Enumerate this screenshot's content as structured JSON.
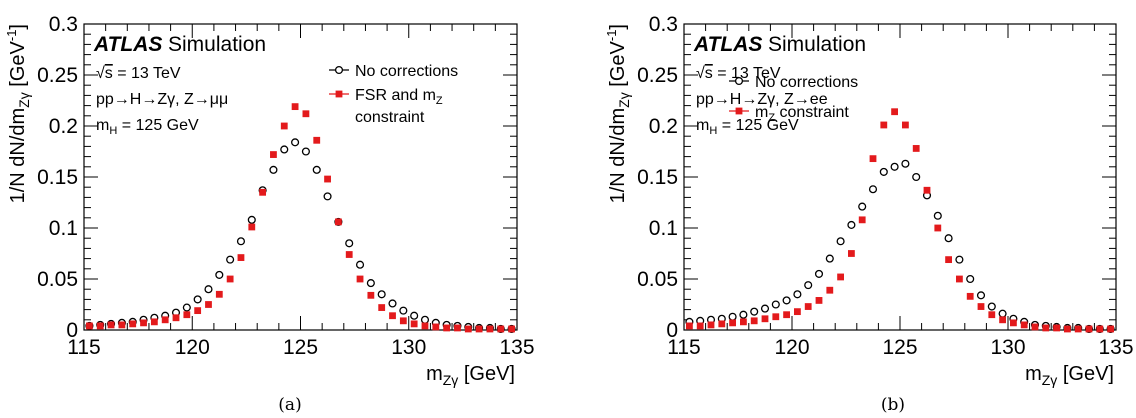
{
  "chart_data": [
    {
      "type": "scatter",
      "panel": "(a)",
      "xlabel_main": "m",
      "xlabel_sub": "Zγ",
      "xlabel_unit": " [GeV]",
      "ylabel": "1/N dN/dm",
      "ylabel_sub": "Zγ",
      "ylabel_unit_a": " [GeV",
      "ylabel_unit_sup": "-1",
      "ylabel_unit_b": "]",
      "xlim": [
        115,
        135
      ],
      "ylim": [
        0,
        0.3
      ],
      "xticks": [
        "115",
        "120",
        "125",
        "130",
        "135"
      ],
      "yticks": [
        "0",
        "0.05",
        "0.1",
        "0.15",
        "0.2",
        "0.25",
        "0.3"
      ],
      "atlas_label": "ATLAS",
      "atlas_suffix": "Simulation",
      "annotations": [
        "√s = 13 TeV",
        "pp→H→Zγ, Z→μμ",
        "m_H = 125 GeV"
      ],
      "legend": [
        "No corrections",
        "FSR and m_Z constraint"
      ],
      "series": [
        {
          "name": "No corrections",
          "marker": "open-circle",
          "color": "#000000",
          "x": [
            115.25,
            115.75,
            116.25,
            116.75,
            117.25,
            117.75,
            118.25,
            118.75,
            119.25,
            119.75,
            120.25,
            120.75,
            121.25,
            121.75,
            122.25,
            122.75,
            123.25,
            123.75,
            124.25,
            124.75,
            125.25,
            125.75,
            126.25,
            126.75,
            127.25,
            127.75,
            128.25,
            128.75,
            129.25,
            129.75,
            130.25,
            130.75,
            131.25,
            131.75,
            132.25,
            132.75,
            133.25,
            133.75,
            134.25,
            134.75
          ],
          "y": [
            0.004,
            0.005,
            0.006,
            0.007,
            0.008,
            0.01,
            0.012,
            0.014,
            0.017,
            0.022,
            0.03,
            0.04,
            0.054,
            0.069,
            0.087,
            0.108,
            0.137,
            0.157,
            0.177,
            0.184,
            0.175,
            0.157,
            0.131,
            0.106,
            0.085,
            0.064,
            0.046,
            0.035,
            0.026,
            0.019,
            0.014,
            0.01,
            0.007,
            0.005,
            0.004,
            0.003,
            0.002,
            0.002,
            0.001,
            0.001
          ]
        },
        {
          "name": "FSR and m_Z constraint",
          "marker": "filled-square",
          "color": "#e31a1c",
          "x": [
            115.25,
            115.75,
            116.25,
            116.75,
            117.25,
            117.75,
            118.25,
            118.75,
            119.25,
            119.75,
            120.25,
            120.75,
            121.25,
            121.75,
            122.25,
            122.75,
            123.25,
            123.75,
            124.25,
            124.75,
            125.25,
            125.75,
            126.25,
            126.75,
            127.25,
            127.75,
            128.25,
            128.75,
            129.25,
            129.75,
            130.25,
            130.75,
            131.25,
            131.75,
            132.25,
            132.75,
            133.25,
            133.75,
            134.25,
            134.75
          ],
          "y": [
            0.004,
            0.004,
            0.005,
            0.005,
            0.006,
            0.007,
            0.008,
            0.01,
            0.012,
            0.015,
            0.019,
            0.025,
            0.035,
            0.05,
            0.071,
            0.101,
            0.135,
            0.172,
            0.2,
            0.219,
            0.212,
            0.186,
            0.148,
            0.106,
            0.074,
            0.05,
            0.034,
            0.022,
            0.014,
            0.009,
            0.006,
            0.004,
            0.003,
            0.002,
            0.002,
            0.001,
            0.001,
            0.001,
            0.001,
            0.001
          ]
        }
      ]
    },
    {
      "type": "scatter",
      "panel": "(b)",
      "xlabel_main": "m",
      "xlabel_sub": "Zγ",
      "xlabel_unit": " [GeV]",
      "ylabel": "1/N dN/dm",
      "ylabel_sub": "Zγ",
      "ylabel_unit_a": " [GeV",
      "ylabel_unit_sup": "-1",
      "ylabel_unit_b": "]",
      "xlim": [
        115,
        135
      ],
      "ylim": [
        0,
        0.3
      ],
      "xticks": [
        "115",
        "120",
        "125",
        "130",
        "135"
      ],
      "yticks": [
        "0",
        "0.05",
        "0.1",
        "0.15",
        "0.2",
        "0.25",
        "0.3"
      ],
      "atlas_label": "ATLAS",
      "atlas_suffix": "Simulation",
      "annotations": [
        "√s = 13 TeV",
        "pp→H→Zγ, Z→ee",
        "m_H = 125 GeV"
      ],
      "legend": [
        "No corrections",
        "m_Z constraint"
      ],
      "series": [
        {
          "name": "No corrections",
          "marker": "open-circle",
          "color": "#000000",
          "x": [
            115.25,
            115.75,
            116.25,
            116.75,
            117.25,
            117.75,
            118.25,
            118.75,
            119.25,
            119.75,
            120.25,
            120.75,
            121.25,
            121.75,
            122.25,
            122.75,
            123.25,
            123.75,
            124.25,
            124.75,
            125.25,
            125.75,
            126.25,
            126.75,
            127.25,
            127.75,
            128.25,
            128.75,
            129.25,
            129.75,
            130.25,
            130.75,
            131.25,
            131.75,
            132.25,
            132.75,
            133.25,
            133.75,
            134.25,
            134.75
          ],
          "y": [
            0.008,
            0.009,
            0.01,
            0.011,
            0.013,
            0.015,
            0.018,
            0.021,
            0.025,
            0.029,
            0.035,
            0.044,
            0.055,
            0.07,
            0.087,
            0.103,
            0.121,
            0.138,
            0.155,
            0.16,
            0.163,
            0.15,
            0.132,
            0.112,
            0.09,
            0.069,
            0.05,
            0.034,
            0.023,
            0.016,
            0.011,
            0.008,
            0.005,
            0.004,
            0.003,
            0.002,
            0.002,
            0.001,
            0.001,
            0.001
          ]
        },
        {
          "name": "m_Z constraint",
          "marker": "filled-square",
          "color": "#e31a1c",
          "x": [
            115.25,
            115.75,
            116.25,
            116.75,
            117.25,
            117.75,
            118.25,
            118.75,
            119.25,
            119.75,
            120.25,
            120.75,
            121.25,
            121.75,
            122.25,
            122.75,
            123.25,
            123.75,
            124.25,
            124.75,
            125.25,
            125.75,
            126.25,
            126.75,
            127.25,
            127.75,
            128.25,
            128.75,
            129.25,
            129.75,
            130.25,
            130.75,
            131.25,
            131.75,
            132.25,
            132.75,
            133.25,
            133.75,
            134.25,
            134.75
          ],
          "y": [
            0.004,
            0.004,
            0.005,
            0.006,
            0.007,
            0.008,
            0.009,
            0.011,
            0.013,
            0.015,
            0.018,
            0.023,
            0.029,
            0.039,
            0.052,
            0.075,
            0.108,
            0.168,
            0.201,
            0.214,
            0.201,
            0.178,
            0.137,
            0.1,
            0.069,
            0.05,
            0.033,
            0.023,
            0.015,
            0.01,
            0.007,
            0.005,
            0.003,
            0.002,
            0.002,
            0.001,
            0.001,
            0.001,
            0.001,
            0.001
          ]
        }
      ]
    }
  ]
}
